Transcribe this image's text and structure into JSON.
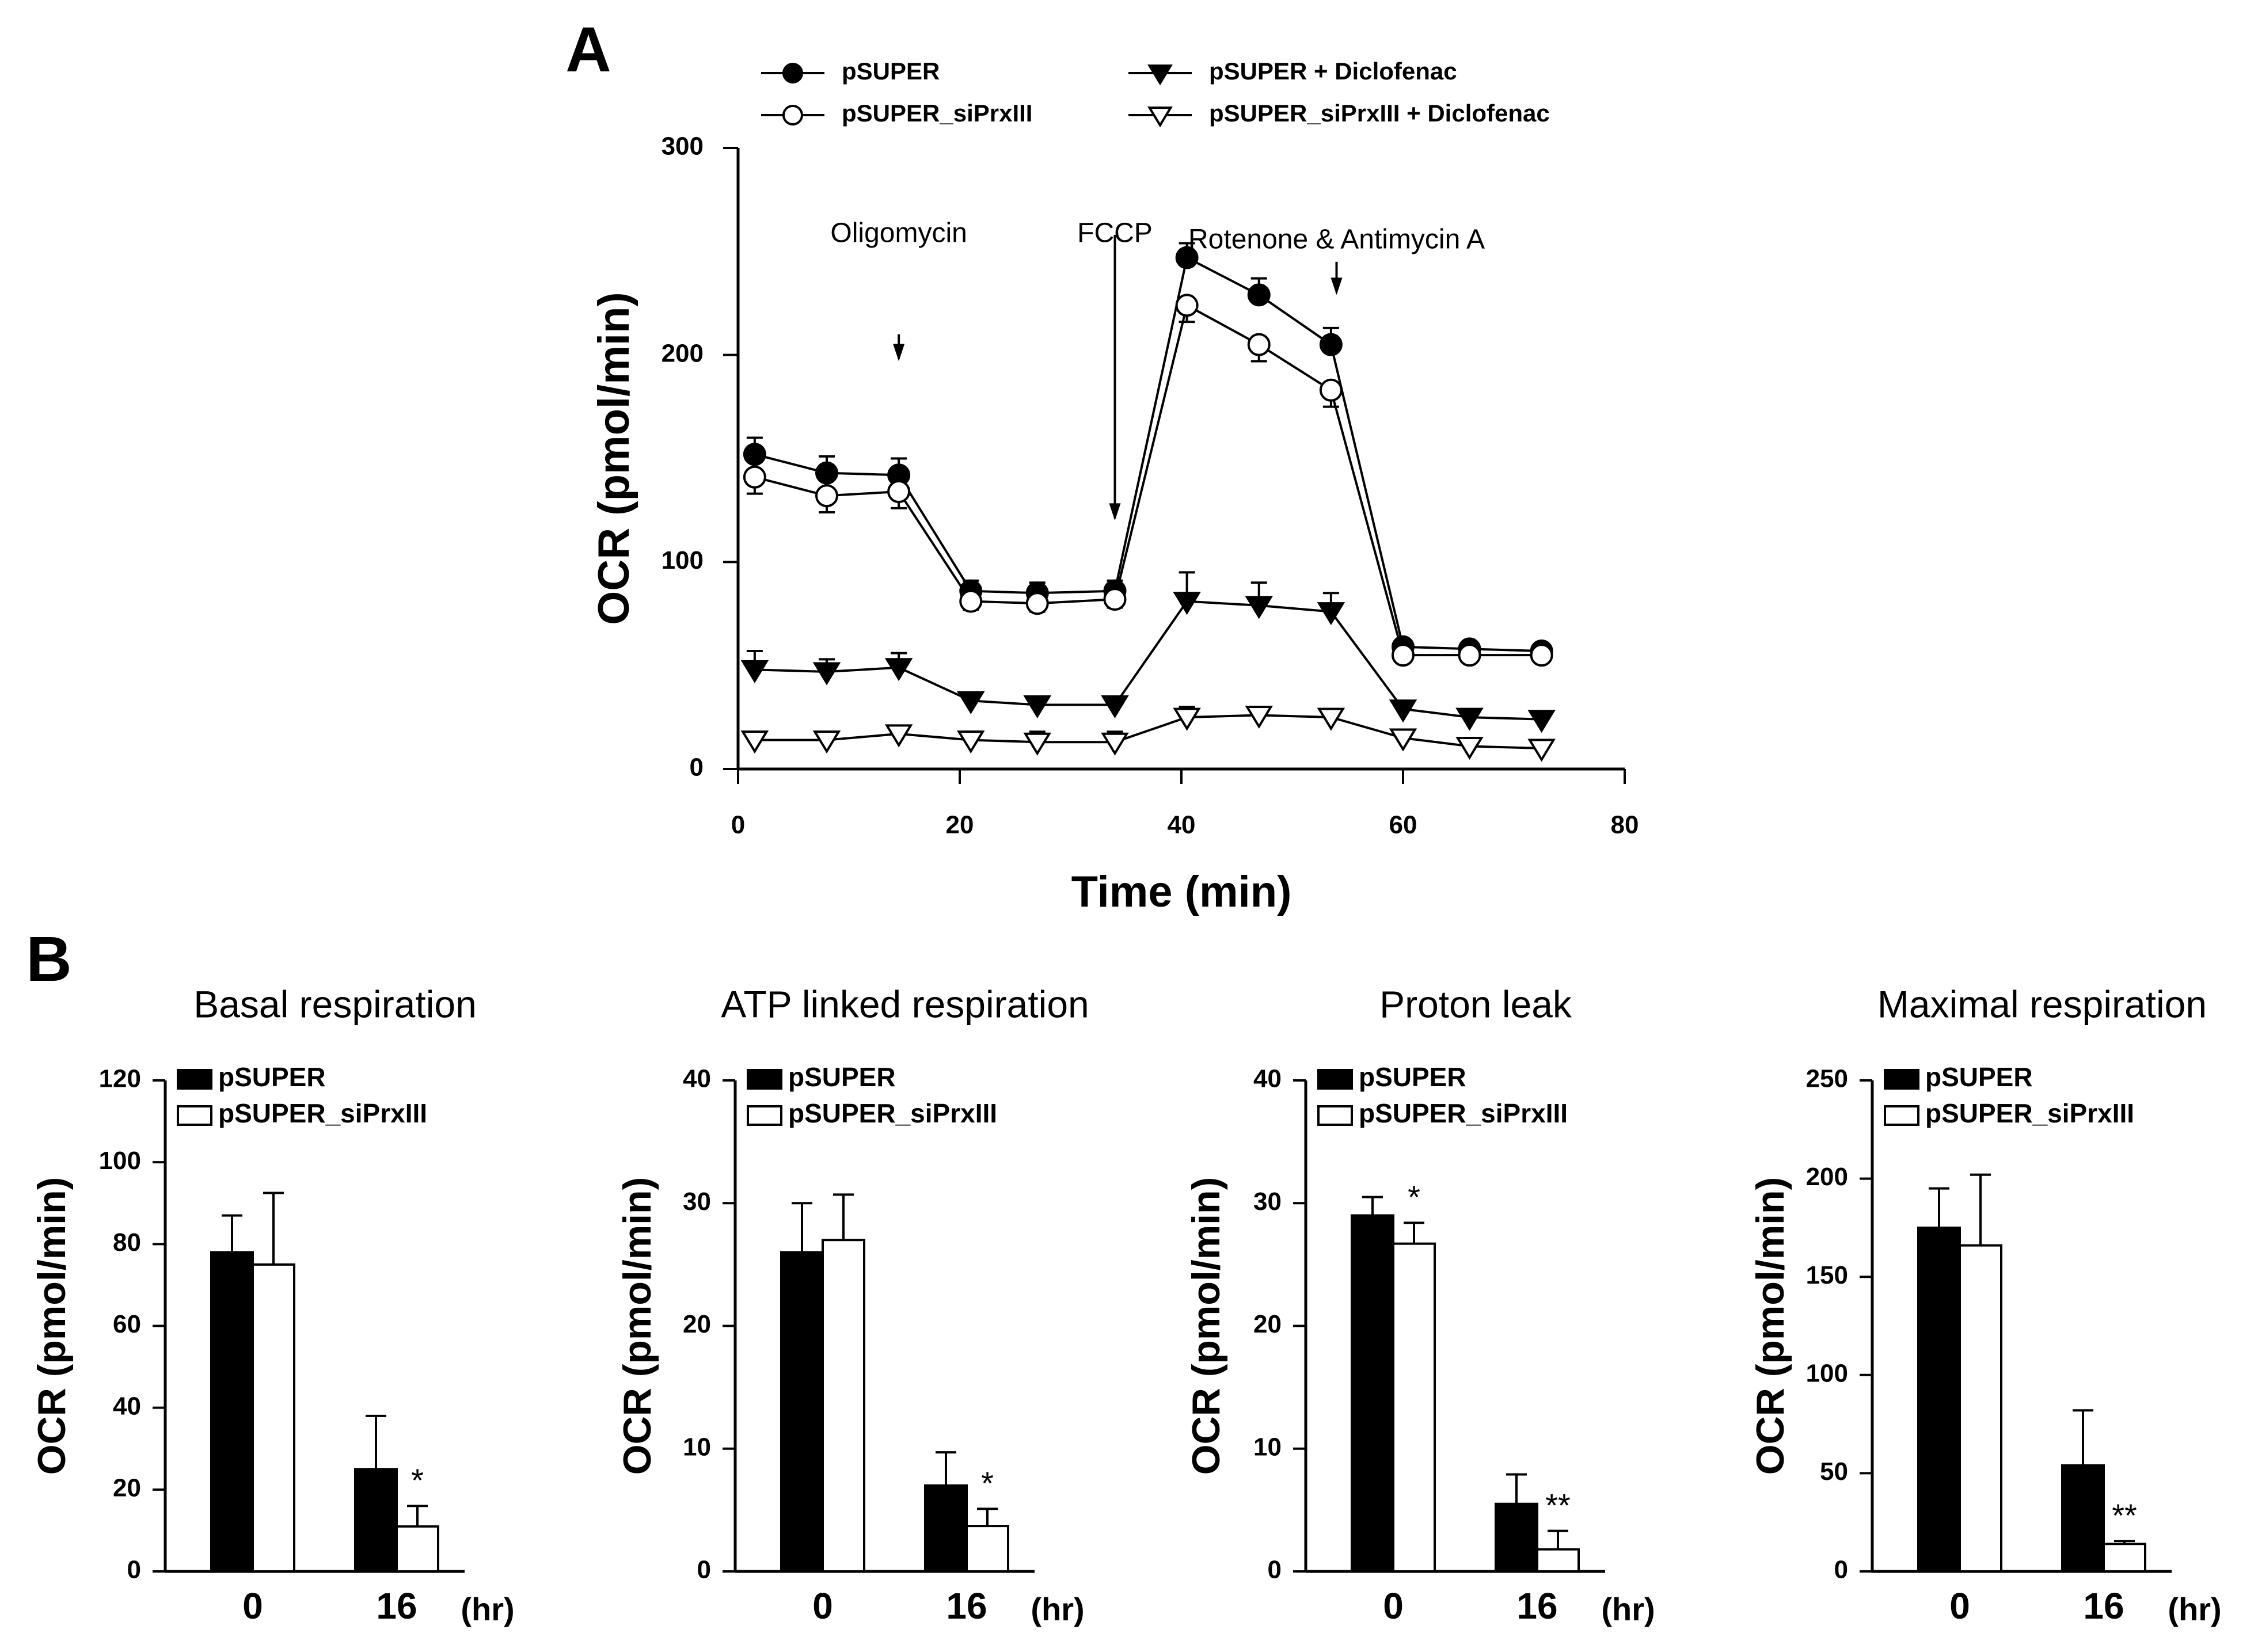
{
  "chart_data": [
    {
      "type": "line",
      "panel_label": "A",
      "xlabel": "Time (min)",
      "ylabel": "OCR (pmol/min)",
      "xlim": [
        0,
        80
      ],
      "ylim": [
        0,
        300
      ],
      "x_ticks": [
        0,
        20,
        40,
        60,
        80
      ],
      "y_ticks": [
        0,
        100,
        200,
        300
      ],
      "x": [
        1.5,
        8,
        14.5,
        21,
        27,
        34,
        40.5,
        47,
        53.5,
        60,
        66,
        72.5
      ],
      "series": [
        {
          "name": "pSUPER",
          "marker": "filled-circle",
          "values": [
            152,
            143,
            142,
            86,
            85,
            86,
            247,
            229,
            205,
            59,
            58,
            57
          ],
          "errors": [
            8,
            8,
            8,
            5,
            5,
            5,
            7,
            8,
            8,
            3,
            3,
            3
          ]
        },
        {
          "name": "pSUPER_siPrxIII",
          "marker": "open-circle",
          "values": [
            141,
            132,
            134,
            81,
            80,
            82,
            224,
            205,
            183,
            55,
            55,
            55
          ],
          "errors": [
            8,
            8,
            8,
            4,
            4,
            4,
            8,
            8,
            8,
            3,
            3,
            3
          ]
        },
        {
          "name": "pSUPER + Diclofenac",
          "marker": "filled-triangle-down",
          "values": [
            48,
            47,
            49,
            33,
            31,
            31,
            81,
            79,
            76,
            29,
            25,
            24
          ],
          "errors": [
            9,
            6,
            7,
            3,
            3,
            3,
            14,
            11,
            9,
            3,
            2,
            2
          ]
        },
        {
          "name": "pSUPER_siPrxIII + Diclofenac",
          "marker": "open-triangle-down",
          "values": [
            14,
            14,
            17,
            14,
            13,
            13,
            25,
            26,
            25,
            15,
            11,
            10
          ],
          "errors": [
            3,
            3,
            4,
            4,
            5,
            5,
            5,
            4,
            4,
            3,
            4,
            4
          ]
        }
      ],
      "annotations": [
        {
          "text": "Oligomycin",
          "x": 14.5,
          "arrow_top": 210,
          "arrow_bottom": 197,
          "label_y": 258
        },
        {
          "text": "FCCP",
          "x": 34,
          "arrow_top": 258,
          "arrow_bottom": 120,
          "label_y": 258
        },
        {
          "text": "Rotenone & Antimycin A",
          "x": 54,
          "arrow_top": 245,
          "arrow_bottom": 229,
          "label_y": 255
        }
      ]
    },
    {
      "type": "bar",
      "panel_label": "B",
      "title": "Basal respiration",
      "categories": [
        "0",
        "16"
      ],
      "xunit": "(hr)",
      "ylabel": "OCR (pmol/min)",
      "ylim": [
        0,
        120
      ],
      "y_ticks": [
        0,
        20,
        40,
        60,
        80,
        100,
        120
      ],
      "series": [
        {
          "name": "pSUPER",
          "values": [
            78,
            25
          ],
          "errors": [
            9,
            13
          ]
        },
        {
          "name": "pSUPER_siPrxIII",
          "values": [
            75,
            11
          ],
          "errors": [
            17.5,
            5
          ]
        }
      ],
      "significance": [
        "",
        "*"
      ]
    },
    {
      "type": "bar",
      "title": "ATP linked respiration",
      "categories": [
        "0",
        "16"
      ],
      "xunit": "(hr)",
      "ylabel": "OCR (pmol/min)",
      "ylim": [
        0,
        40
      ],
      "y_ticks": [
        0,
        10,
        20,
        30,
        40
      ],
      "series": [
        {
          "name": "pSUPER",
          "values": [
            26,
            7
          ],
          "errors": [
            4,
            2.7
          ]
        },
        {
          "name": "pSUPER_siPrxIII",
          "values": [
            27,
            3.7
          ],
          "errors": [
            3.7,
            1.4
          ]
        }
      ],
      "significance": [
        "",
        "*"
      ]
    },
    {
      "type": "bar",
      "title": "Proton leak",
      "categories": [
        "0",
        "16"
      ],
      "xunit": "(hr)",
      "ylabel": "OCR (pmol/min)",
      "ylim": [
        0,
        40
      ],
      "y_ticks": [
        0,
        10,
        20,
        30,
        40
      ],
      "series": [
        {
          "name": "pSUPER",
          "values": [
            29,
            5.5
          ],
          "errors": [
            1.5,
            2.4
          ]
        },
        {
          "name": "pSUPER_siPrxIII",
          "values": [
            26.7,
            1.8
          ],
          "errors": [
            1.7,
            1.5
          ]
        }
      ],
      "significance": [
        "*",
        "**"
      ]
    },
    {
      "type": "bar",
      "title": "Maximal respiration",
      "categories": [
        "0",
        "16"
      ],
      "xunit": "(hr)",
      "ylabel": "OCR (pmol/min)",
      "ylim": [
        0,
        250
      ],
      "y_ticks": [
        0,
        50,
        100,
        150,
        200,
        250
      ],
      "series": [
        {
          "name": "pSUPER",
          "values": [
            175,
            54
          ],
          "errors": [
            20,
            28
          ]
        },
        {
          "name": "pSUPER_siPrxIII",
          "values": [
            166,
            14
          ],
          "errors": [
            36,
            1.5
          ]
        }
      ],
      "significance": [
        "",
        "**"
      ]
    }
  ]
}
